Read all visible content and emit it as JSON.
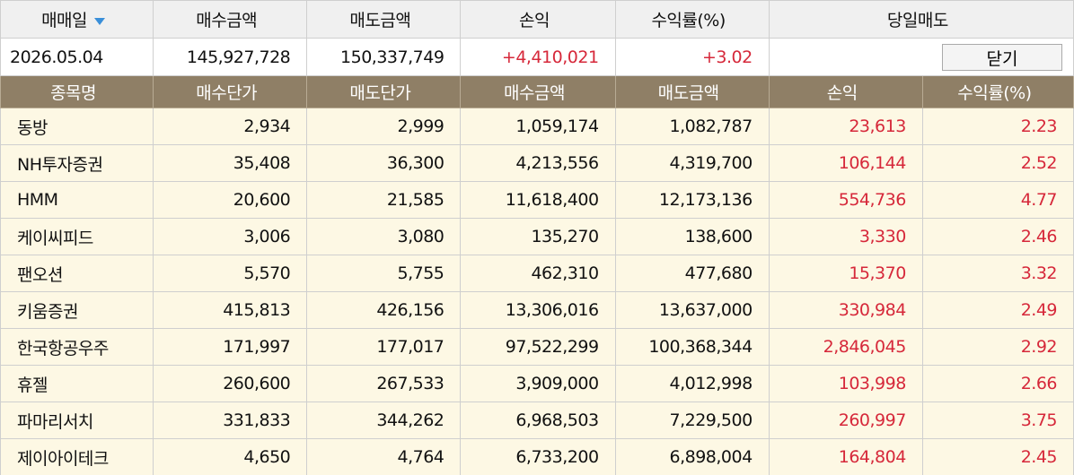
{
  "summary": {
    "header": [
      "매매일",
      "매수금액",
      "매도금액",
      "손익",
      "수익률(%)",
      "당일매도"
    ],
    "values": [
      "2026.05.04",
      "145,927,728",
      "150,337,749",
      "+4,410,021",
      "+3.02"
    ],
    "close_button": "닫기"
  },
  "table": {
    "columns": [
      "종목명",
      "매수단가",
      "매도단가",
      "매수금액",
      "매도금액",
      "손익",
      "수익률(%)"
    ],
    "rows": [
      [
        "동방",
        "2,934",
        "2,999",
        "1,059,174",
        "1,082,787",
        "23,613",
        "2.23"
      ],
      [
        "NH투자증권",
        "35,408",
        "36,300",
        "4,213,556",
        "4,319,700",
        "106,144",
        "2.52"
      ],
      [
        "HMM",
        "20,600",
        "21,585",
        "11,618,400",
        "12,173,136",
        "554,736",
        "4.77"
      ],
      [
        "케이씨피드",
        "3,006",
        "3,080",
        "135,270",
        "138,600",
        "3,330",
        "2.46"
      ],
      [
        "팬오션",
        "5,570",
        "5,755",
        "462,310",
        "477,680",
        "15,370",
        "3.32"
      ],
      [
        "키움증권",
        "415,813",
        "426,156",
        "13,306,016",
        "13,637,000",
        "330,984",
        "2.49"
      ],
      [
        "한국항공우주",
        "171,997",
        "177,017",
        "97,522,299",
        "100,368,344",
        "2,846,045",
        "2.92"
      ],
      [
        "휴젤",
        "260,600",
        "267,533",
        "3,909,000",
        "4,012,998",
        "103,998",
        "2.66"
      ],
      [
        "파마리서치",
        "331,833",
        "344,262",
        "6,968,503",
        "7,229,500",
        "260,997",
        "3.75"
      ],
      [
        "제이아이테크",
        "4,650",
        "4,764",
        "6,733,200",
        "6,898,004",
        "164,804",
        "2.45"
      ]
    ]
  }
}
